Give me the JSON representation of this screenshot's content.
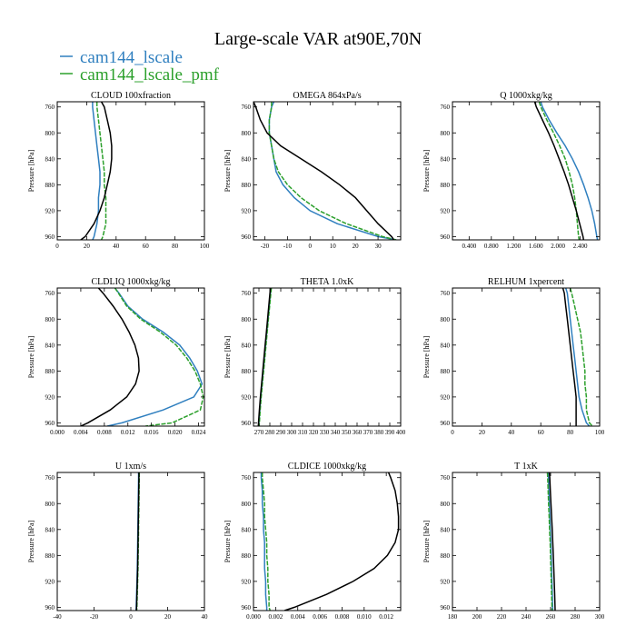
{
  "figure": {
    "title": "Large-scale VAR at90E,70N",
    "legend": [
      {
        "name": "cam144_lscale",
        "color": "#2f7fbf"
      },
      {
        "name": "cam144_lscale_pmf",
        "color": "#2ca02c"
      }
    ],
    "control_color": "#000000"
  },
  "chart_data": [
    {
      "type": "line",
      "title": "CLOUD 100xfraction",
      "ylabel": "Pressure [hPa]",
      "xlim": [
        0,
        100
      ],
      "ylim": [
        965,
        752
      ],
      "xticks": [
        0,
        20,
        40,
        60,
        80,
        100
      ],
      "xticklabels": [
        "0",
        "20",
        "40",
        "60",
        "80",
        "100"
      ],
      "yticks": [
        760,
        800,
        840,
        880,
        920,
        960
      ],
      "yticklabels": [
        "760",
        "800",
        "840",
        "880",
        "920",
        "960"
      ],
      "y": [
        752,
        760,
        780,
        800,
        820,
        840,
        860,
        880,
        900,
        920,
        940,
        960,
        965
      ],
      "series": [
        {
          "name": "cam144_lscale",
          "x": [
            24,
            24,
            25,
            26,
            27,
            28,
            29,
            29,
            28,
            28,
            27,
            25,
            24
          ]
        },
        {
          "name": "cam144_lscale_pmf",
          "x": [
            27,
            27,
            28,
            29,
            30,
            31,
            32,
            32,
            33,
            33,
            33,
            31,
            30
          ]
        },
        {
          "name": "control",
          "x": [
            30,
            32,
            34,
            36,
            37,
            37,
            36,
            34,
            32,
            29,
            25,
            19,
            16
          ]
        }
      ]
    },
    {
      "type": "line",
      "title": "OMEGA 864xPa/s",
      "ylabel": "Pressure [hPa]",
      "xlim": [
        -25,
        40
      ],
      "ylim": [
        965,
        752
      ],
      "xticks": [
        -20,
        -10,
        0,
        10,
        20,
        30
      ],
      "xticklabels": [
        "-20",
        "-10",
        "0",
        "10",
        "20",
        "30"
      ],
      "yticks": [
        760,
        800,
        840,
        880,
        920,
        960
      ],
      "yticklabels": [
        "760",
        "800",
        "840",
        "880",
        "920",
        "960"
      ],
      "y": [
        752,
        760,
        780,
        800,
        820,
        840,
        860,
        880,
        900,
        920,
        940,
        960,
        965
      ],
      "series": [
        {
          "name": "cam144_lscale",
          "x": [
            -16,
            -17,
            -18,
            -18,
            -17,
            -16,
            -15,
            -12,
            -7,
            0,
            12,
            30,
            38
          ]
        },
        {
          "name": "cam144_lscale_pmf",
          "x": [
            -17,
            -17,
            -18,
            -18,
            -17,
            -16,
            -14,
            -10,
            -4,
            4,
            16,
            32,
            38
          ]
        },
        {
          "name": "control",
          "x": [
            -25,
            -24,
            -22,
            -19,
            -13,
            -4,
            5,
            13,
            20,
            25,
            30,
            36,
            37
          ]
        }
      ]
    },
    {
      "type": "line",
      "title": "Q 1000xkg/kg",
      "ylabel": "Pressure [hPa]",
      "xlim": [
        0.1,
        2.75
      ],
      "ylim": [
        965,
        752
      ],
      "xticks": [
        0.4,
        0.8,
        1.2,
        1.6,
        2.0,
        2.4
      ],
      "xticklabels": [
        "0.400",
        "0.800",
        "1.200",
        "1.600",
        "2.000",
        "2.400"
      ],
      "yticks": [
        760,
        800,
        840,
        880,
        920,
        960
      ],
      "yticklabels": [
        "760",
        "800",
        "840",
        "880",
        "920",
        "960"
      ],
      "y": [
        752,
        760,
        780,
        800,
        820,
        840,
        860,
        880,
        900,
        920,
        940,
        960,
        965
      ],
      "series": [
        {
          "name": "cam144_lscale",
          "x": [
            1.69,
            1.72,
            1.84,
            1.98,
            2.13,
            2.26,
            2.37,
            2.46,
            2.54,
            2.61,
            2.66,
            2.7,
            2.71
          ]
        },
        {
          "name": "cam144_lscale_pmf",
          "x": [
            1.66,
            1.69,
            1.8,
            1.92,
            2.03,
            2.13,
            2.2,
            2.26,
            2.3,
            2.33,
            2.35,
            2.37,
            2.38
          ]
        },
        {
          "name": "control",
          "x": [
            1.58,
            1.61,
            1.72,
            1.83,
            1.93,
            2.02,
            2.11,
            2.19,
            2.26,
            2.33,
            2.39,
            2.45,
            2.46
          ]
        }
      ]
    },
    {
      "type": "line",
      "title": "CLDLIQ 1000xkg/kg",
      "ylabel": "Pressure [hPa]",
      "xlim": [
        0,
        0.025
      ],
      "ylim": [
        965,
        752
      ],
      "xticks": [
        0,
        0.004,
        0.008,
        0.012,
        0.016,
        0.02,
        0.024
      ],
      "xticklabels": [
        "0.000",
        "0.004",
        "0.008",
        "0.012",
        "0.016",
        "0.020",
        "0.024"
      ],
      "yticks": [
        760,
        800,
        840,
        880,
        920,
        960
      ],
      "yticklabels": [
        "760",
        "800",
        "840",
        "880",
        "920",
        "960"
      ],
      "y": [
        752,
        760,
        780,
        800,
        820,
        840,
        860,
        880,
        900,
        920,
        940,
        960,
        965
      ],
      "series": [
        {
          "name": "cam144_lscale",
          "x": [
            0.0098,
            0.0105,
            0.012,
            0.0145,
            0.018,
            0.0208,
            0.0225,
            0.0238,
            0.0246,
            0.0232,
            0.018,
            0.011,
            0.0085
          ]
        },
        {
          "name": "cam144_lscale_pmf",
          "x": [
            0.0098,
            0.0104,
            0.0118,
            0.0142,
            0.0175,
            0.0202,
            0.022,
            0.0234,
            0.0243,
            0.0248,
            0.0243,
            0.0195,
            0.015
          ]
        },
        {
          "name": "control",
          "x": [
            0.007,
            0.0078,
            0.0095,
            0.011,
            0.0122,
            0.0132,
            0.0138,
            0.0139,
            0.0133,
            0.0118,
            0.009,
            0.0052,
            0.004
          ]
        }
      ]
    },
    {
      "type": "line",
      "title": "THETA 1.0xK",
      "ylabel": "Pressure [hPa]",
      "xlim": [
        265,
        400
      ],
      "ylim": [
        965,
        752
      ],
      "xticks": [
        270,
        280,
        290,
        300,
        310,
        320,
        330,
        340,
        350,
        360,
        370,
        380,
        390,
        400
      ],
      "xticklabels": [
        "270",
        "280",
        "290",
        "300",
        "310",
        "320",
        "330",
        "340",
        "350",
        "360",
        "370",
        "380",
        "390",
        "400"
      ],
      "yticks": [
        760,
        800,
        840,
        880,
        920,
        960
      ],
      "yticklabels": [
        "760",
        "800",
        "840",
        "880",
        "920",
        "960"
      ],
      "y": [
        752,
        760,
        780,
        800,
        820,
        840,
        860,
        880,
        900,
        920,
        940,
        960,
        965
      ],
      "series": [
        {
          "name": "cam144_lscale",
          "x": [
            281,
            280.5,
            279.4,
            278.3,
            277.2,
            276.1,
            275,
            273.9,
            272.8,
            271.7,
            270.8,
            270,
            269.8
          ]
        },
        {
          "name": "cam144_lscale_pmf",
          "x": [
            281.4,
            280.9,
            279.8,
            278.7,
            277.6,
            276.5,
            275.4,
            274.3,
            273.2,
            272.1,
            271.2,
            270.4,
            270.2
          ]
        },
        {
          "name": "control",
          "x": [
            280.6,
            280.1,
            279,
            277.9,
            276.8,
            275.7,
            274.6,
            273.5,
            272.4,
            271.3,
            270.4,
            269.6,
            269.4
          ]
        }
      ]
    },
    {
      "type": "line",
      "title": "RELHUM 1xpercent",
      "ylabel": "Pressure [hPa]",
      "xlim": [
        0,
        100
      ],
      "ylim": [
        965,
        752
      ],
      "xticks": [
        0,
        20,
        40,
        60,
        80,
        100
      ],
      "xticklabels": [
        "0",
        "20",
        "40",
        "60",
        "80",
        "100"
      ],
      "yticks": [
        760,
        800,
        840,
        880,
        920,
        960
      ],
      "yticklabels": [
        "760",
        "800",
        "840",
        "880",
        "920",
        "960"
      ],
      "y": [
        752,
        760,
        780,
        800,
        820,
        840,
        860,
        880,
        900,
        920,
        940,
        960,
        965
      ],
      "series": [
        {
          "name": "cam144_lscale",
          "x": [
            77,
            78,
            79,
            80,
            81,
            82,
            83,
            84,
            85,
            86,
            88,
            91,
            93
          ]
        },
        {
          "name": "cam144_lscale_pmf",
          "x": [
            80,
            81,
            83,
            85,
            87,
            88,
            89,
            90,
            90,
            91,
            91,
            93,
            95
          ]
        },
        {
          "name": "control",
          "x": [
            75,
            76,
            77,
            78,
            79,
            80,
            81,
            82,
            83,
            84,
            84,
            84,
            84
          ]
        }
      ]
    },
    {
      "type": "line",
      "title": "U 1xm/s",
      "ylabel": "Pressure [hPa]",
      "xlim": [
        -40,
        40
      ],
      "ylim": [
        965,
        752
      ],
      "xticks": [
        -40,
        -20,
        0,
        20,
        40
      ],
      "xticklabels": [
        "-40",
        "-20",
        "0",
        "20",
        "40"
      ],
      "yticks": [
        760,
        800,
        840,
        880,
        920,
        960
      ],
      "yticklabels": [
        "760",
        "800",
        "840",
        "880",
        "920",
        "960"
      ],
      "y": [
        752,
        760,
        780,
        800,
        820,
        840,
        860,
        880,
        900,
        920,
        940,
        960,
        965
      ],
      "series": [
        {
          "name": "cam144_lscale",
          "x": [
            4.2,
            4.2,
            4.1,
            4,
            3.9,
            3.8,
            3.7,
            3.6,
            3.5,
            3.3,
            3.1,
            2.9,
            2.8
          ]
        },
        {
          "name": "cam144_lscale_pmf",
          "x": [
            4.6,
            4.6,
            4.5,
            4.4,
            4.3,
            4.2,
            4.1,
            4,
            3.9,
            3.7,
            3.5,
            3.3,
            3.2
          ]
        },
        {
          "name": "control",
          "x": [
            4.4,
            4.4,
            4.3,
            4.2,
            4.1,
            4,
            3.9,
            3.8,
            3.7,
            3.5,
            3.3,
            3.1,
            3
          ]
        }
      ]
    },
    {
      "type": "line",
      "title": "CLDICE 1000xkg/kg",
      "ylabel": "Pressure [hPa]",
      "xlim": [
        0,
        0.0133
      ],
      "ylim": [
        965,
        752
      ],
      "xticks": [
        0,
        0.002,
        0.004,
        0.006,
        0.008,
        0.01,
        0.012
      ],
      "xticklabels": [
        "0.000",
        "0.002",
        "0.004",
        "0.006",
        "0.008",
        "0.010",
        "0.012"
      ],
      "yticks": [
        760,
        800,
        840,
        880,
        920,
        960
      ],
      "yticklabels": [
        "760",
        "800",
        "840",
        "880",
        "920",
        "960"
      ],
      "y": [
        752,
        760,
        780,
        800,
        820,
        840,
        860,
        880,
        900,
        920,
        940,
        960,
        965
      ],
      "series": [
        {
          "name": "cam144_lscale",
          "x": [
            0.0007,
            0.0007,
            0.0008,
            0.0008,
            0.0009,
            0.0009,
            0.001,
            0.001,
            0.001,
            0.0011,
            0.0011,
            0.0012,
            0.0012
          ]
        },
        {
          "name": "cam144_lscale_pmf",
          "x": [
            0.0008,
            0.0008,
            0.0009,
            0.001,
            0.001,
            0.0011,
            0.0012,
            0.0012,
            0.0013,
            0.0013,
            0.0014,
            0.0014,
            0.0015
          ]
        },
        {
          "name": "control",
          "x": [
            0.0122,
            0.0124,
            0.0128,
            0.013,
            0.0131,
            0.0131,
            0.0128,
            0.0121,
            0.0109,
            0.009,
            0.0066,
            0.0037,
            0.0028
          ]
        }
      ]
    },
    {
      "type": "line",
      "title": "T 1xK",
      "ylabel": "Pressure [hPa]",
      "xlim": [
        180,
        300
      ],
      "ylim": [
        965,
        752
      ],
      "xticks": [
        180,
        200,
        220,
        240,
        260,
        280,
        300
      ],
      "xticklabels": [
        "180",
        "200",
        "220",
        "240",
        "260",
        "280",
        "300"
      ],
      "yticks": [
        760,
        800,
        840,
        880,
        920,
        960
      ],
      "yticklabels": [
        "760",
        "800",
        "840",
        "880",
        "920",
        "960"
      ],
      "y": [
        752,
        760,
        780,
        800,
        820,
        840,
        860,
        880,
        900,
        920,
        940,
        960,
        965
      ],
      "series": [
        {
          "name": "cam144_lscale",
          "x": [
            258,
            258.2,
            258.6,
            259,
            259.4,
            259.8,
            260.2,
            260.5,
            260.8,
            261.1,
            261.4,
            261.7,
            261.8
          ]
        },
        {
          "name": "cam144_lscale_pmf",
          "x": [
            257.4,
            257.6,
            258,
            258.4,
            258.8,
            259.2,
            259.6,
            259.9,
            260.2,
            260.5,
            260.8,
            261.1,
            261.2
          ]
        },
        {
          "name": "control",
          "x": [
            259,
            259.3,
            259.8,
            260.3,
            260.8,
            261.3,
            261.8,
            262.2,
            262.6,
            263,
            263.3,
            263.6,
            263.7
          ]
        }
      ]
    }
  ]
}
